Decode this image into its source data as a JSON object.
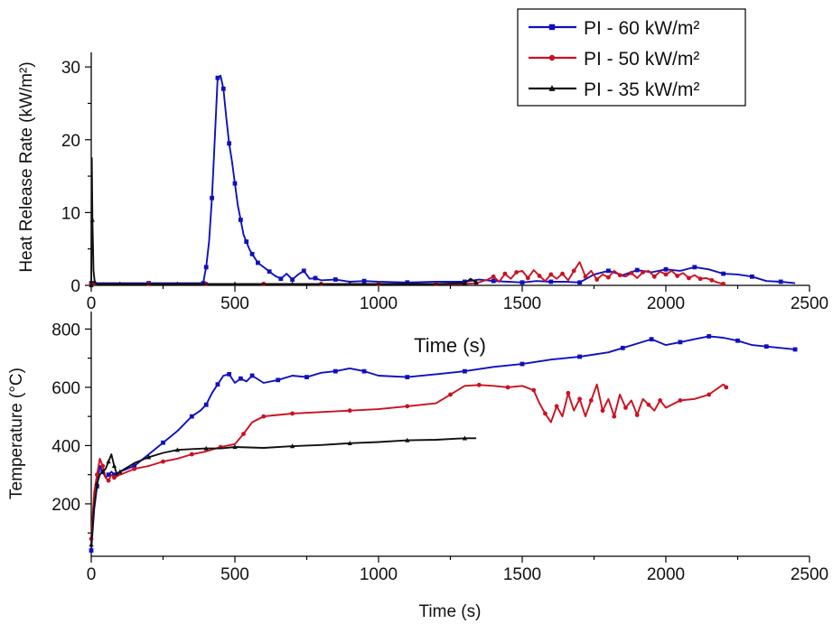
{
  "chart_data": [
    {
      "type": "line",
      "panel": "top",
      "title": "",
      "xlabel": "Time (s)",
      "ylabel": "Heat Release Rate (kW/m²)",
      "xlim": [
        0,
        2500
      ],
      "ylim": [
        0,
        32
      ],
      "x_ticks": [
        "0",
        "500",
        "1000",
        "1500",
        "2000",
        "2500"
      ],
      "y_ticks": [
        "0",
        "10",
        "20",
        "30"
      ],
      "grid": false,
      "legend": "top-right",
      "series": [
        {
          "name": "PI - 60 kW/m²",
          "color": "#1010c0",
          "marker": "square",
          "x": [
            0,
            100,
            200,
            300,
            390,
            395,
            400,
            410,
            420,
            430,
            440,
            450,
            460,
            470,
            480,
            490,
            500,
            510,
            520,
            530,
            540,
            550,
            560,
            570,
            580,
            600,
            620,
            640,
            660,
            680,
            700,
            720,
            740,
            760,
            780,
            800,
            850,
            900,
            950,
            1000,
            1100,
            1200,
            1300,
            1350,
            1400,
            1450,
            1500,
            1550,
            1600,
            1650,
            1700,
            1750,
            1800,
            1850,
            1900,
            1950,
            2000,
            2050,
            2100,
            2150,
            2200,
            2250,
            2300,
            2350,
            2400,
            2450
          ],
          "y": [
            0.3,
            0.3,
            0.3,
            0.3,
            0.3,
            1.5,
            2.5,
            6,
            12,
            20,
            28.5,
            28.8,
            27,
            23,
            19.5,
            17,
            14,
            11,
            9,
            7,
            6,
            5,
            4.3,
            3.7,
            3.1,
            2.5,
            1.9,
            1.3,
            0.9,
            1.6,
            0.8,
            1.5,
            2.0,
            0.9,
            1.0,
            0.7,
            0.8,
            0.5,
            0.6,
            0.5,
            0.4,
            0.5,
            0.5,
            0.8,
            0.6,
            0.5,
            0.4,
            0.6,
            0.5,
            0.5,
            0.4,
            1.5,
            2.0,
            1.4,
            2.1,
            1.8,
            2.2,
            2.0,
            2.5,
            2.2,
            1.6,
            1.5,
            1.2,
            0.6,
            0.5,
            0.3
          ]
        },
        {
          "name": "PI - 50 kW/m²",
          "color": "#cc1020",
          "marker": "circle",
          "x": [
            0,
            100,
            200,
            300,
            400,
            500,
            600,
            700,
            800,
            900,
            1000,
            1100,
            1200,
            1300,
            1340,
            1380,
            1400,
            1420,
            1440,
            1460,
            1480,
            1500,
            1520,
            1540,
            1560,
            1580,
            1600,
            1620,
            1640,
            1660,
            1680,
            1700,
            1720,
            1740,
            1760,
            1780,
            1800,
            1820,
            1840,
            1860,
            1880,
            1900,
            1920,
            1940,
            1960,
            1980,
            2000,
            2020,
            2040,
            2060,
            2080,
            2100,
            2120,
            2140,
            2160,
            2180,
            2200
          ],
          "y": [
            0.2,
            0.2,
            0.2,
            0.2,
            0.2,
            0.2,
            0.2,
            0.2,
            0.2,
            0.2,
            0.2,
            0.2,
            0.2,
            0.2,
            0.3,
            0.8,
            1.2,
            0.5,
            1.6,
            0.9,
            1.8,
            2.0,
            1.0,
            2.1,
            1.3,
            0.6,
            1.5,
            0.9,
            1.6,
            0.7,
            2.0,
            3.2,
            1.2,
            2.0,
            0.8,
            1.5,
            1.1,
            2.0,
            1.4,
            1.2,
            1.7,
            1.0,
            1.8,
            2.0,
            1.2,
            1.9,
            1.5,
            2.0,
            1.3,
            1.7,
            1.0,
            1.4,
            0.9,
            1.0,
            0.7,
            0.4,
            0.2
          ]
        },
        {
          "name": "PI - 35 kW/m²",
          "color": "#111111",
          "marker": "triangle",
          "x": [
            0,
            2,
            4,
            8,
            12,
            20,
            100,
            200,
            300,
            400,
            500,
            600,
            700,
            800,
            900,
            1000,
            1100,
            1200,
            1300,
            1320,
            1340
          ],
          "y": [
            0,
            17.5,
            9,
            2,
            0.5,
            0.2,
            0.2,
            0.2,
            0.2,
            0.2,
            0.2,
            0.2,
            0.2,
            0.2,
            0.2,
            0.2,
            0.2,
            0.2,
            0.3,
            0.9,
            0.4
          ]
        }
      ]
    },
    {
      "type": "line",
      "panel": "bottom",
      "title": "",
      "xlabel": "Time (s)",
      "ylabel": "Temperature (°C)",
      "xlim": [
        0,
        2500
      ],
      "ylim": [
        20,
        860
      ],
      "x_ticks": [
        "0",
        "500",
        "1000",
        "1500",
        "2000",
        "2500"
      ],
      "y_ticks": [
        "200",
        "400",
        "600",
        "800"
      ],
      "grid": false,
      "series": [
        {
          "name": "PI - 60 kW/m²",
          "color": "#1010c0",
          "marker": "square",
          "x": [
            0,
            10,
            20,
            30,
            40,
            50,
            60,
            70,
            80,
            100,
            150,
            200,
            250,
            300,
            350,
            380,
            400,
            420,
            440,
            460,
            480,
            500,
            520,
            540,
            560,
            600,
            650,
            700,
            750,
            800,
            850,
            900,
            950,
            1000,
            1100,
            1200,
            1300,
            1400,
            1500,
            1600,
            1700,
            1800,
            1850,
            1900,
            1950,
            2000,
            2050,
            2100,
            2150,
            2200,
            2250,
            2300,
            2350,
            2400,
            2450
          ],
          "y": [
            40,
            180,
            260,
            330,
            310,
            290,
            300,
            310,
            300,
            310,
            330,
            370,
            410,
            450,
            500,
            520,
            540,
            580,
            610,
            640,
            645,
            615,
            630,
            620,
            640,
            615,
            625,
            640,
            635,
            650,
            655,
            665,
            655,
            640,
            635,
            645,
            655,
            670,
            680,
            695,
            705,
            720,
            735,
            750,
            765,
            745,
            755,
            765,
            775,
            770,
            760,
            745,
            740,
            735,
            730
          ]
        },
        {
          "name": "PI - 50 kW/m²",
          "color": "#cc1020",
          "marker": "circle",
          "x": [
            0,
            10,
            20,
            30,
            40,
            50,
            60,
            70,
            80,
            100,
            150,
            200,
            250,
            300,
            350,
            400,
            450,
            500,
            530,
            560,
            600,
            650,
            700,
            800,
            900,
            1000,
            1100,
            1200,
            1250,
            1300,
            1350,
            1400,
            1450,
            1500,
            1540,
            1560,
            1580,
            1600,
            1620,
            1640,
            1660,
            1680,
            1700,
            1720,
            1740,
            1760,
            1780,
            1800,
            1820,
            1840,
            1860,
            1880,
            1900,
            1920,
            1940,
            1960,
            1980,
            2000,
            2050,
            2100,
            2150,
            2200,
            2210
          ],
          "y": [
            80,
            240,
            300,
            355,
            330,
            290,
            280,
            300,
            290,
            300,
            320,
            330,
            345,
            355,
            370,
            380,
            395,
            405,
            440,
            480,
            500,
            505,
            510,
            515,
            520,
            525,
            535,
            545,
            575,
            605,
            608,
            605,
            600,
            605,
            590,
            545,
            510,
            480,
            535,
            500,
            580,
            520,
            560,
            500,
            555,
            610,
            520,
            560,
            500,
            575,
            530,
            555,
            505,
            560,
            540,
            520,
            555,
            530,
            555,
            560,
            575,
            610,
            600
          ]
        },
        {
          "name": "PI - 35 kW/m²",
          "color": "#111111",
          "marker": "triangle",
          "x": [
            0,
            10,
            20,
            30,
            40,
            50,
            60,
            70,
            80,
            90,
            100,
            150,
            200,
            250,
            300,
            350,
            400,
            450,
            500,
            600,
            700,
            800,
            900,
            1000,
            1100,
            1200,
            1300,
            1340
          ],
          "y": [
            60,
            190,
            270,
            300,
            310,
            320,
            345,
            370,
            330,
            300,
            310,
            340,
            360,
            375,
            385,
            388,
            390,
            390,
            395,
            392,
            398,
            402,
            408,
            412,
            418,
            420,
            425,
            425
          ]
        }
      ]
    }
  ]
}
